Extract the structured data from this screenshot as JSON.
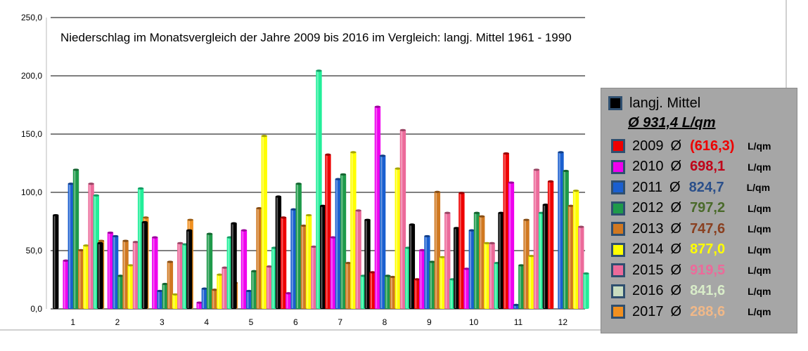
{
  "chart_data": {
    "type": "bar",
    "title": "Niederschlag im Monatsvergleich der Jahre 2009  bis 2016  im Vergleich:  langj. Mittel  1961 -  1990",
    "categories": [
      "1",
      "2",
      "3",
      "4",
      "5",
      "6",
      "7",
      "8",
      "9",
      "10",
      "11",
      "12"
    ],
    "y_ticks": [
      "0,0",
      "50,0",
      "100,0",
      "150,0",
      "200,0",
      "250,0"
    ],
    "ylim": [
      0,
      250
    ],
    "grid": true,
    "legend_position": "right",
    "series": [
      {
        "name": "langj. Mittel",
        "color": "#000000",
        "values": [
          81,
          57,
          75,
          68,
          74,
          97,
          89,
          77,
          73,
          70,
          83,
          90
        ]
      },
      {
        "name": "2009",
        "color": "#ee0000",
        "values": [
          null,
          null,
          null,
          null,
          null,
          79,
          133,
          32,
          26,
          100,
          134,
          110
        ]
      },
      {
        "name": "2010",
        "color": "#ee00ee",
        "values": [
          42,
          66,
          62,
          6,
          68,
          14,
          62,
          174,
          51,
          35,
          109,
          null
        ]
      },
      {
        "name": "2011",
        "color": "#1a5fd0",
        "values": [
          108,
          63,
          16,
          18,
          16,
          86,
          112,
          132,
          63,
          68,
          4,
          135
        ]
      },
      {
        "name": "2012",
        "color": "#1e9a4a",
        "values": [
          120,
          29,
          22,
          65,
          33,
          108,
          116,
          29,
          41,
          83,
          38,
          119
        ]
      },
      {
        "name": "2013",
        "color": "#d07820",
        "values": [
          51,
          59,
          41,
          17,
          87,
          72,
          40,
          28,
          101,
          80,
          77,
          89
        ]
      },
      {
        "name": "2014",
        "color": "#ffff00",
        "values": [
          55,
          38,
          13,
          30,
          149,
          81,
          135,
          121,
          45,
          57,
          46,
          102
        ]
      },
      {
        "name": "2015",
        "color": "#ec6a9a",
        "values": [
          108,
          58,
          57,
          36,
          37,
          54,
          85,
          154,
          83,
          57,
          120,
          71
        ]
      },
      {
        "name": "2016",
        "color": "#22ee99",
        "values": [
          98,
          104,
          56,
          62,
          53,
          205,
          29,
          53,
          26,
          40,
          83,
          31
        ]
      },
      {
        "name": "2017",
        "color": "#f09020",
        "values": [
          59,
          79,
          77,
          23,
          50,
          null,
          null,
          null,
          null,
          null,
          null,
          null
        ]
      }
    ]
  },
  "legend": {
    "header_label": "langj. Mittel",
    "header_avg": "Ø   931,4  L/qm",
    "symbol": "Ø",
    "unit": "L/qm",
    "rows": [
      {
        "year": "2009",
        "total": "(616,3)",
        "total_color": "#ee0000",
        "swatch": "#ee0000"
      },
      {
        "year": "2010",
        "total": "698,1",
        "total_color": "#c00018",
        "swatch": "#ee00ee"
      },
      {
        "year": "2011",
        "total": "824,7",
        "total_color": "#2a4f8a",
        "swatch": "#1a5fd0"
      },
      {
        "year": "2012",
        "total": "797,2",
        "total_color": "#4a6a2a",
        "swatch": "#1e9a4a"
      },
      {
        "year": "2013",
        "total": "747,6",
        "total_color": "#8a4020",
        "swatch": "#d07820"
      },
      {
        "year": "2014",
        "total": "877,0",
        "total_color": "#ffff00",
        "swatch": "#ffff00"
      },
      {
        "year": "2015",
        "total": "919,5",
        "total_color": "#ec6a9a",
        "swatch": "#ec6a9a"
      },
      {
        "year": "2016",
        "total": "841,6",
        "total_color": "#d8ecc8",
        "swatch": "#c8dcc0"
      },
      {
        "year": "2017",
        "total": "288,6",
        "total_color": "#f0b888",
        "swatch": "#f09020"
      }
    ]
  }
}
